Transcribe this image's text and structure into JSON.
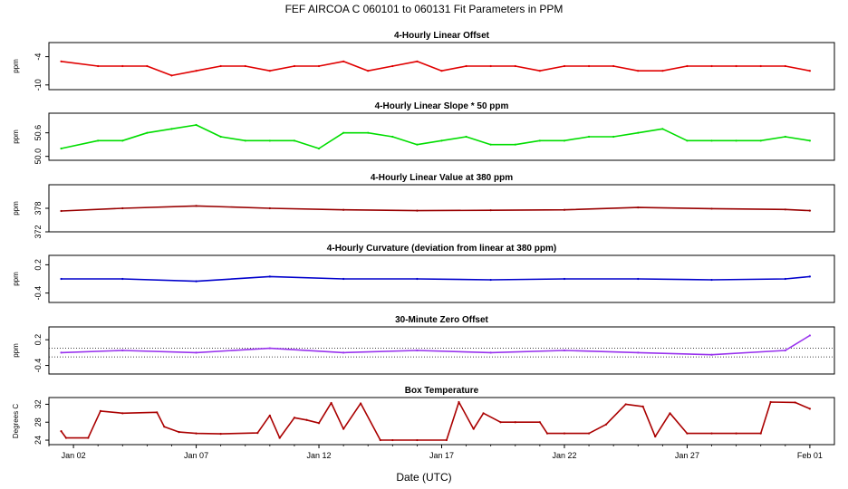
{
  "main_title": "FEF   AIRCOA C   060101 to 060131   Fit Parameters in PPM",
  "xlabel": "Date (UTC)",
  "x_ticks": [
    "Jan 02",
    "Jan 07",
    "Jan 12",
    "Jan 17",
    "Jan 22",
    "Jan 27",
    "Feb 01"
  ],
  "colors": {
    "offset": "#e00000",
    "slope": "#00dd00",
    "value": "#990000",
    "curvature": "#0000cc",
    "zero": "#9933ee",
    "temperature": "#aa0000"
  },
  "chart_data": [
    {
      "type": "line",
      "title": "4-Hourly Linear Offset",
      "ylabel": "ppm",
      "yticks": [
        "-10",
        "-4"
      ],
      "ylim": [
        -11,
        -1
      ],
      "xlim": [
        "2006-01-01",
        "2006-02-02"
      ],
      "x": [
        "2006-01-01.5",
        "2006-01-03",
        "2006-01-04",
        "2006-01-05",
        "2006-01-06",
        "2006-01-07",
        "2006-01-08",
        "2006-01-09",
        "2006-01-10",
        "2006-01-11",
        "2006-01-12",
        "2006-01-13",
        "2006-01-14",
        "2006-01-15",
        "2006-01-16",
        "2006-01-17",
        "2006-01-18",
        "2006-01-19",
        "2006-01-20",
        "2006-01-21",
        "2006-01-22",
        "2006-01-23",
        "2006-01-24",
        "2006-01-25",
        "2006-01-26",
        "2006-01-27",
        "2006-01-28",
        "2006-01-29",
        "2006-01-30",
        "2006-01-31",
        "2006-02-01"
      ],
      "values": [
        -5,
        -6,
        -6,
        -6,
        -8,
        -7,
        -6,
        -6,
        -7,
        -6,
        -6,
        -5,
        -7,
        -6,
        -5,
        -7,
        -6,
        -6,
        -6,
        -7,
        -6,
        -6,
        -6,
        -7,
        -7,
        -6,
        -6,
        -6,
        -6,
        -6,
        -7
      ]
    },
    {
      "type": "line",
      "title": "4-Hourly Linear Slope * 50 ppm",
      "ylabel": "ppm",
      "yticks": [
        "50.0",
        "50.6"
      ],
      "ylim": [
        49.9,
        51.1
      ],
      "xlim": [
        "2006-01-01",
        "2006-02-02"
      ],
      "x": [
        "2006-01-01.5",
        "2006-01-03",
        "2006-01-04",
        "2006-01-05",
        "2006-01-06",
        "2006-01-07",
        "2006-01-08",
        "2006-01-09",
        "2006-01-10",
        "2006-01-11",
        "2006-01-12",
        "2006-01-13",
        "2006-01-14",
        "2006-01-15",
        "2006-01-16",
        "2006-01-17",
        "2006-01-18",
        "2006-01-19",
        "2006-01-20",
        "2006-01-21",
        "2006-01-22",
        "2006-01-23",
        "2006-01-24",
        "2006-01-25",
        "2006-01-26",
        "2006-01-27",
        "2006-01-28",
        "2006-01-29",
        "2006-01-30",
        "2006-01-31",
        "2006-02-01"
      ],
      "values": [
        50.2,
        50.4,
        50.4,
        50.6,
        50.7,
        50.8,
        50.5,
        50.4,
        50.4,
        50.4,
        50.2,
        50.6,
        50.6,
        50.5,
        50.3,
        50.4,
        50.5,
        50.3,
        50.3,
        50.4,
        50.4,
        50.5,
        50.5,
        50.6,
        50.7,
        50.4,
        50.4,
        50.4,
        50.4,
        50.5,
        50.4
      ]
    },
    {
      "type": "line",
      "title": "4-Hourly Linear Value at 380 ppm",
      "ylabel": "ppm",
      "yticks": [
        "372",
        "378"
      ],
      "ylim": [
        372,
        384
      ],
      "xlim": [
        "2006-01-01",
        "2006-02-02"
      ],
      "x": [
        "2006-01-01.5",
        "2006-01-04",
        "2006-01-07",
        "2006-01-10",
        "2006-01-13",
        "2006-01-16",
        "2006-01-19",
        "2006-01-22",
        "2006-01-25",
        "2006-01-28",
        "2006-01-31",
        "2006-02-01"
      ],
      "values": [
        377.3,
        378.0,
        378.6,
        378.0,
        377.6,
        377.4,
        377.5,
        377.6,
        378.2,
        377.9,
        377.7,
        377.4
      ]
    },
    {
      "type": "line",
      "title": "4-Hourly Curvature (deviation from linear at 380 ppm)",
      "ylabel": "ppm",
      "yticks": [
        "-0.4",
        "0.2"
      ],
      "ylim": [
        -0.6,
        0.4
      ],
      "xlim": [
        "2006-01-01",
        "2006-02-02"
      ],
      "x": [
        "2006-01-01.5",
        "2006-01-04",
        "2006-01-07",
        "2006-01-10",
        "2006-01-13",
        "2006-01-16",
        "2006-01-19",
        "2006-01-22",
        "2006-01-25",
        "2006-01-28",
        "2006-01-31",
        "2006-02-01"
      ],
      "values": [
        -0.1,
        -0.1,
        -0.15,
        -0.05,
        -0.1,
        -0.1,
        -0.12,
        -0.1,
        -0.1,
        -0.12,
        -0.1,
        -0.05
      ]
    },
    {
      "type": "line",
      "title": "30-Minute Zero Offset",
      "ylabel": "ppm",
      "yticks": [
        "-0.4",
        "0.2"
      ],
      "ylim": [
        -0.6,
        0.5
      ],
      "xlim": [
        "2006-01-01",
        "2006-02-02"
      ],
      "x": [
        "2006-01-01.5",
        "2006-01-04",
        "2006-01-07",
        "2006-01-10",
        "2006-01-13",
        "2006-01-16",
        "2006-01-19",
        "2006-01-22",
        "2006-01-25",
        "2006-01-28",
        "2006-01-31",
        "2006-02-01"
      ],
      "values": [
        -0.1,
        -0.05,
        -0.1,
        0.0,
        -0.1,
        -0.05,
        -0.1,
        -0.05,
        -0.1,
        -0.15,
        -0.05,
        0.3
      ]
    },
    {
      "type": "line",
      "title": "Box Temperature",
      "ylabel": "Degrees C",
      "yticks": [
        "24",
        "28",
        "32"
      ],
      "ylim": [
        23,
        33.5
      ],
      "xlim": [
        "2006-01-01",
        "2006-02-02"
      ],
      "x": [
        "2006-01-01.5",
        "2006-01-01.7",
        "2006-01-02.6",
        "2006-01-03.1",
        "2006-01-04",
        "2006-01-05.4",
        "2006-01-05.7",
        "2006-01-06.3",
        "2006-01-07",
        "2006-01-08",
        "2006-01-09.5",
        "2006-01-10",
        "2006-01-10.4",
        "2006-01-11.0",
        "2006-01-11.5",
        "2006-01-12.0",
        "2006-01-12.5",
        "2006-01-13.0",
        "2006-01-13.7",
        "2006-01-14.5",
        "2006-01-15",
        "2006-01-16",
        "2006-01-17.2",
        "2006-01-17.7",
        "2006-01-18.3",
        "2006-01-18.7",
        "2006-01-19.4",
        "2006-01-20",
        "2006-01-21.0",
        "2006-01-21.3",
        "2006-01-22",
        "2006-01-23",
        "2006-01-23.7",
        "2006-01-24.5",
        "2006-01-25.2",
        "2006-01-25.7",
        "2006-01-26.3",
        "2006-01-27",
        "2006-01-28",
        "2006-01-29",
        "2006-01-30.0",
        "2006-01-30.4",
        "2006-01-31.4",
        "2006-02-01.0"
      ],
      "values": [
        26,
        24.5,
        24.5,
        30.5,
        30,
        30.2,
        27,
        25.8,
        25.5,
        25.4,
        25.6,
        29.5,
        24.5,
        29,
        28.5,
        27.8,
        32.3,
        26.5,
        32.2,
        24,
        24,
        24,
        24,
        32.5,
        26.5,
        30,
        28,
        28,
        28,
        25.5,
        25.5,
        25.5,
        27.5,
        32,
        31.5,
        24.8,
        30,
        25.5,
        25.5,
        25.5,
        25.5,
        32.5,
        32.4,
        31
      ]
    }
  ]
}
